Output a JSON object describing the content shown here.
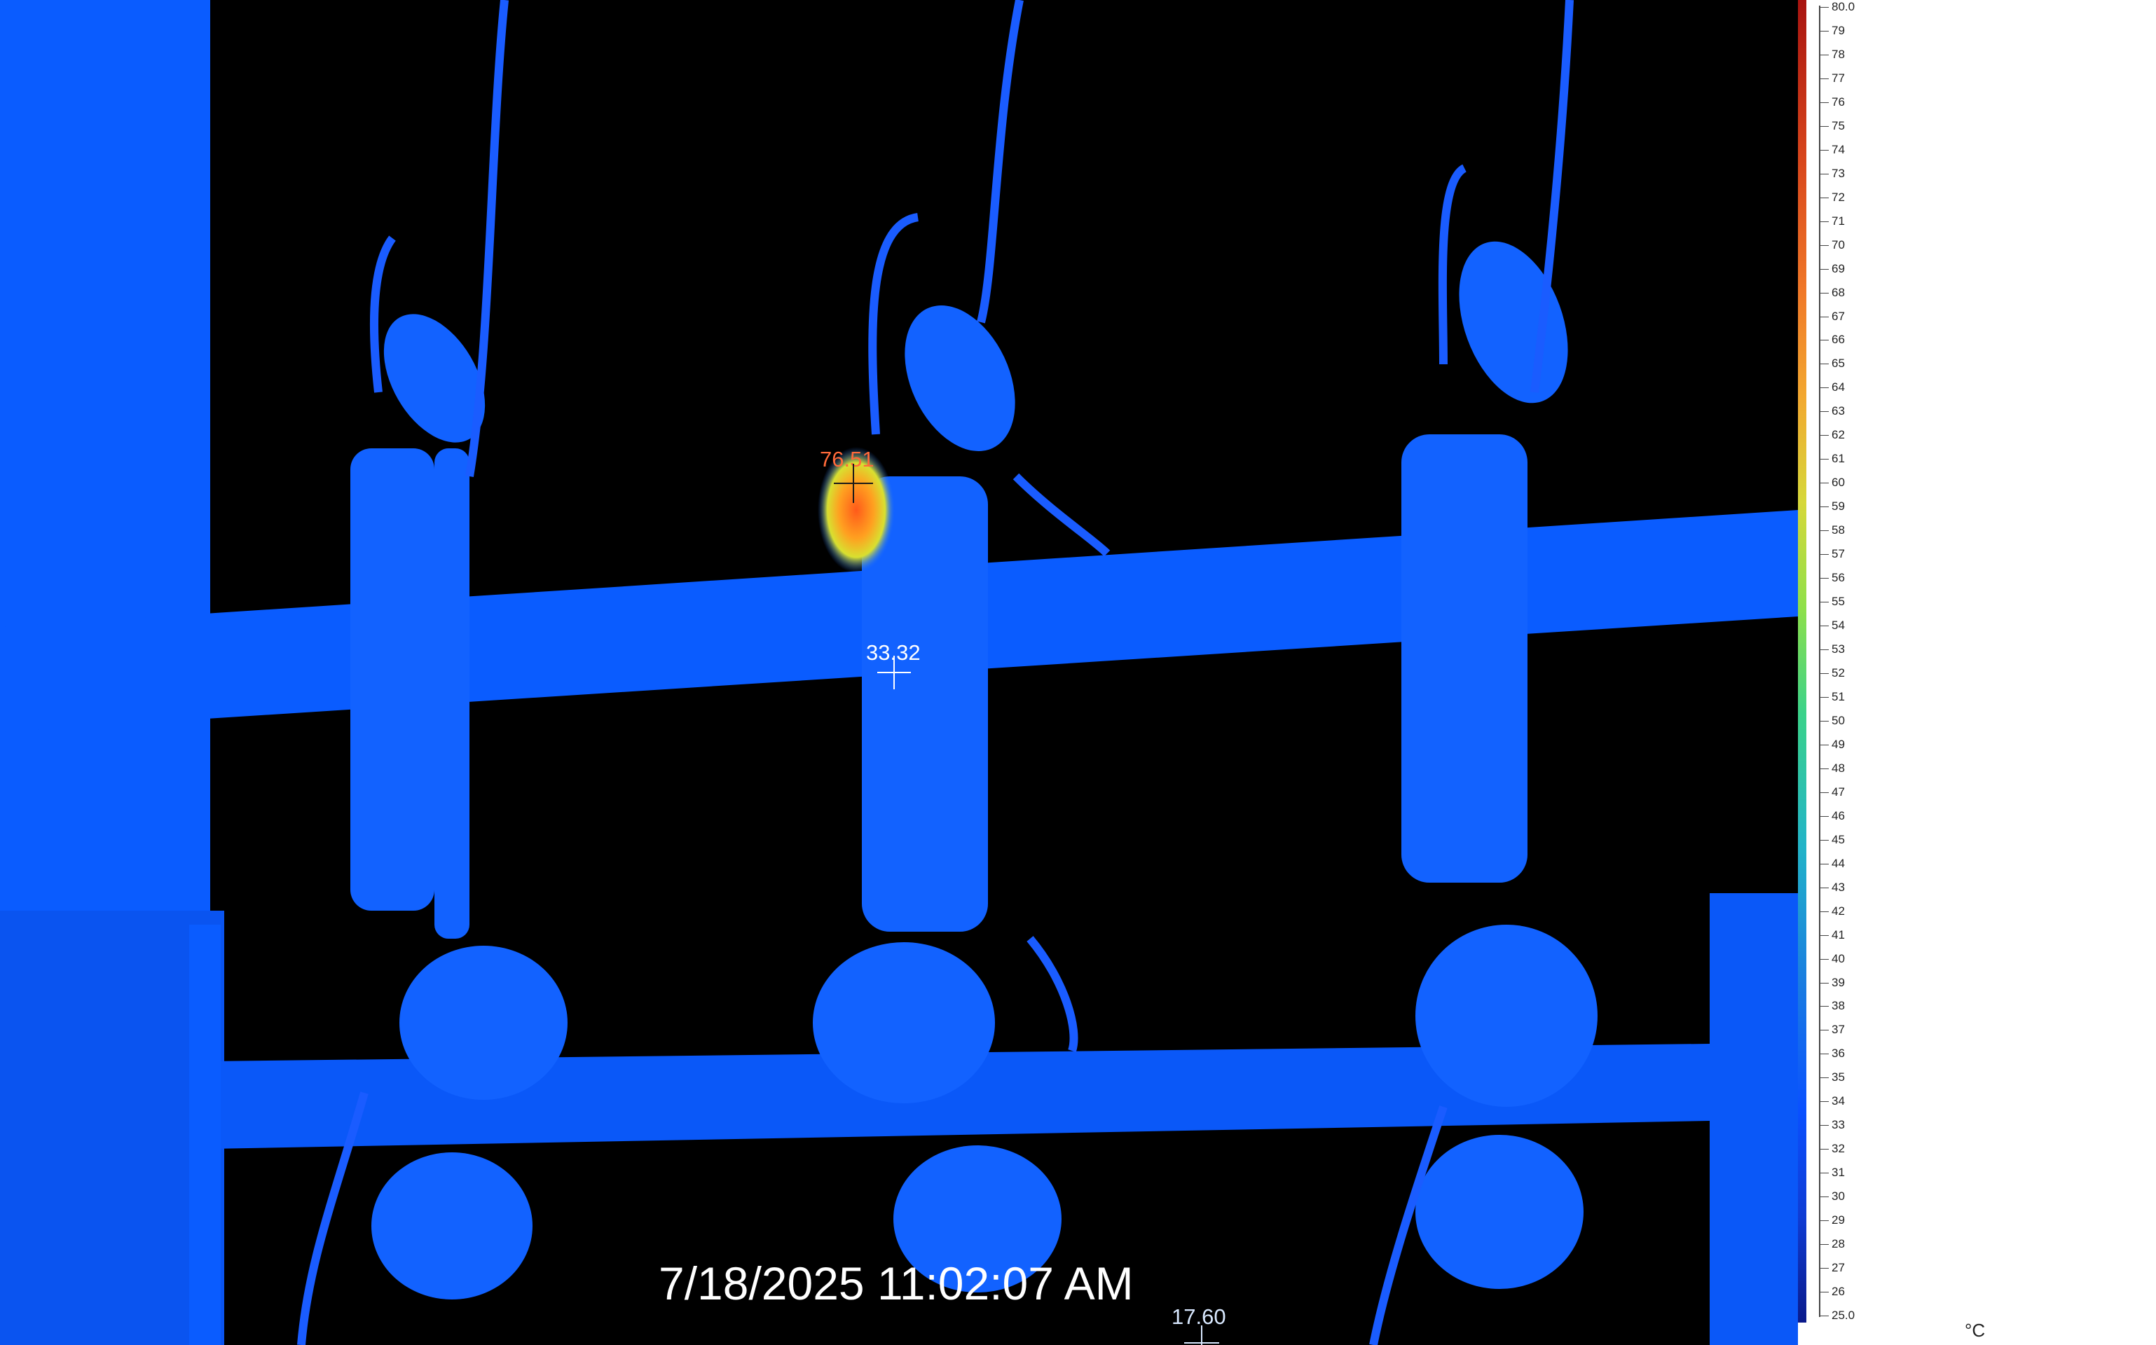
{
  "image": {
    "description_icon": "thermal-camera-view",
    "timestamp": "7/18/2025 11:02:07 AM"
  },
  "markers": {
    "hot": {
      "value": "76.51",
      "color": "#ff6a3a"
    },
    "center": {
      "value": "33.32",
      "color": "#ffffff"
    },
    "min": {
      "value": "17.60",
      "color": "#d8e8ff"
    }
  },
  "scale": {
    "unit": "°C",
    "max_label": "80.0",
    "min_label": "25.0",
    "tick_labels": [
      "79",
      "78",
      "77",
      "76",
      "75",
      "74",
      "73",
      "72",
      "71",
      "70",
      "69",
      "68",
      "67",
      "66",
      "65",
      "64",
      "63",
      "62",
      "61",
      "60",
      "59",
      "58",
      "57",
      "56",
      "55",
      "54",
      "53",
      "52",
      "51",
      "50",
      "49",
      "48",
      "47",
      "46",
      "45",
      "44",
      "43",
      "42",
      "41",
      "40",
      "39",
      "38",
      "37",
      "36",
      "35",
      "34",
      "33",
      "32",
      "31",
      "30",
      "29",
      "28",
      "27",
      "26"
    ]
  },
  "colors": {
    "structure_blue": "#0a5cff",
    "background": "#000000"
  }
}
